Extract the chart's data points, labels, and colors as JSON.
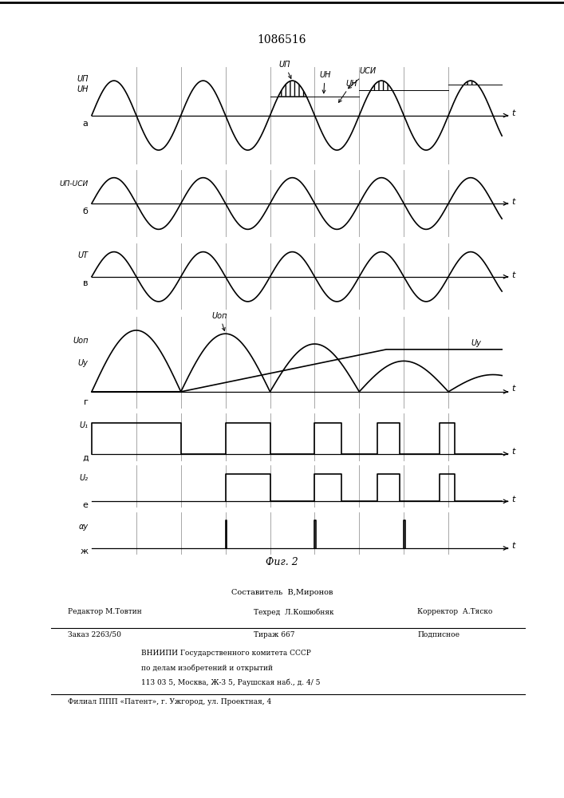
{
  "title": "1086516",
  "fig_caption": "Фиг. 2",
  "background_color": "#ffffff",
  "line_color": "#000000",
  "panel_labels": [
    "а",
    "б",
    "в",
    "г",
    "д",
    "е",
    "ж"
  ],
  "vline_color": "#999999",
  "panel_a_label1": "UП",
  "panel_a_label2": "UН",
  "panel_a_mid_label1": "UП",
  "panel_a_mid_label2": "UН",
  "panel_a_mid_label3": "UН",
  "panel_a_mid_label4": "UСИ",
  "panel_b_label": "UП-UСИ",
  "panel_v_label": "UТ",
  "panel_g_label1": "Uоп",
  "panel_g_label2": "Uу",
  "panel_g_mid_label1": "Uоп",
  "panel_g_mid_label2": "Uу",
  "panel_d_label": "U₁",
  "panel_e_label": "U₂",
  "panel_zh_label": "αу",
  "footer_composer": "Составитель  В,Миронов",
  "footer_editor": "Редактор М.Товтин",
  "footer_techred": "Техред  Л.Кошюбняк",
  "footer_corrector": "Корректор  А.Тяско",
  "footer_order": "Заказ 2263/50",
  "footer_tirazh": "Тираж 667",
  "footer_podp": "Подписное",
  "footer_vniip1": "ВНИИПИ Государственного комитета СССР",
  "footer_vniip2": "по делам изобретений и открытий",
  "footer_addr": "113 03 5, Москва, Ж-3 5, Раушская наб., д. 4/ 5",
  "footer_filial": "Филиал ППП «Патент», г. Ужгород, ул. Проектная, 4"
}
